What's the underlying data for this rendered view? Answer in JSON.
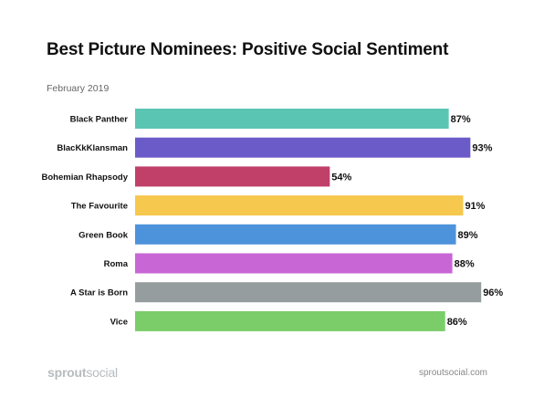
{
  "header": {
    "title": "Best Picture Nominees: Positive Social Sentiment",
    "subtitle": "February 2019"
  },
  "footer": {
    "brand_bold": "sprout",
    "brand_light": "social",
    "site": "sproutsocial.com"
  },
  "chart_data": {
    "type": "bar",
    "orientation": "horizontal",
    "title": "Best Picture Nominees: Positive Social Sentiment",
    "subtitle": "February 2019",
    "categories": [
      "Black Panther",
      "BlacKkKlansman",
      "Bohemian Rhapsody",
      "The Favourite",
      "Green Book",
      "Roma",
      "A Star is Born",
      "Vice"
    ],
    "values": [
      87,
      93,
      54,
      91,
      89,
      88,
      96,
      86
    ],
    "labels": [
      "87%",
      "93%",
      "54%",
      "91%",
      "89%",
      "88%",
      "96%",
      "86%"
    ],
    "colors": [
      "#5bc5b4",
      "#6b5bc9",
      "#c0406a",
      "#f6c84d",
      "#4d93db",
      "#c866d6",
      "#959d9f",
      "#7bcd6a"
    ],
    "xlim": [
      0,
      100
    ],
    "grid": false,
    "legend": "none"
  }
}
